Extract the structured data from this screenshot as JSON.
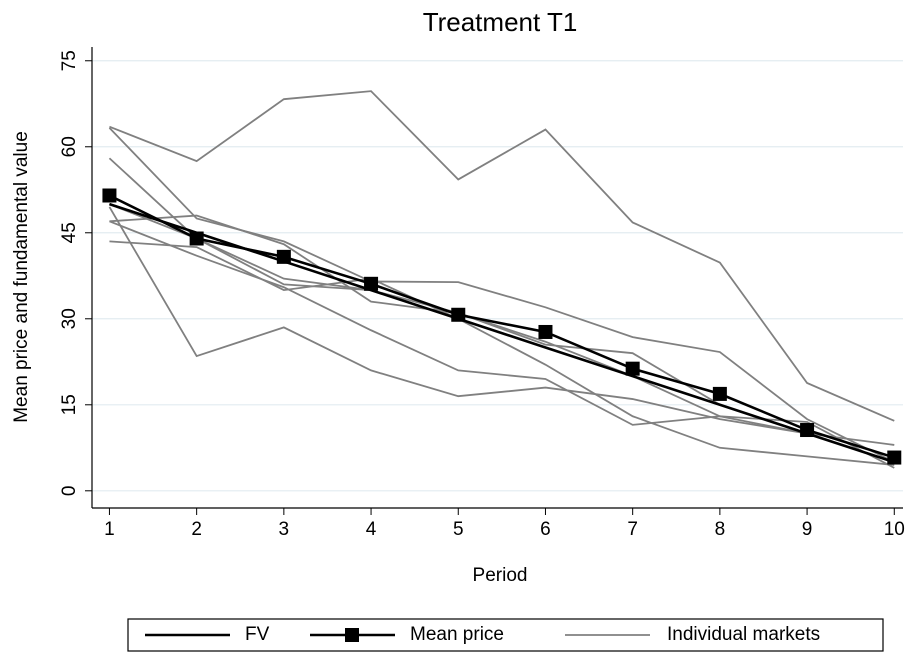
{
  "chart_data": {
    "type": "line",
    "title": "Treatment T1",
    "x_label": "Period",
    "y_label": "Mean price and fundamental value",
    "x": [
      1,
      2,
      3,
      4,
      5,
      6,
      7,
      8,
      9,
      10
    ],
    "xlim": [
      0.8,
      10.1
    ],
    "xticks": [
      1,
      2,
      3,
      4,
      5,
      6,
      7,
      8,
      9,
      10
    ],
    "ylim": [
      -3,
      77.4
    ],
    "yticks": [
      0,
      15,
      30,
      45,
      60,
      75
    ],
    "grid": true,
    "series": [
      {
        "name": "FV",
        "color": "#000000",
        "values": [
          50,
          45,
          40,
          35,
          30,
          25,
          20,
          15,
          10,
          5
        ]
      },
      {
        "name": "Mean price",
        "color": "#000000",
        "marker": "square",
        "values": [
          51.5,
          44,
          40.8,
          36.1,
          30.7,
          27.7,
          21.3,
          16.9,
          10.6,
          5.8
        ]
      },
      {
        "name": "Individual markets",
        "color": "#808080",
        "values": [
          [
            63.5,
            57.5,
            68.3,
            69.7,
            54.3,
            63,
            46.8,
            39.8,
            18.8,
            12.2
          ],
          [
            63.3,
            47.5,
            43.5,
            36.5,
            36.4,
            32,
            26.8,
            24.2,
            12.5,
            5
          ],
          [
            58,
            44,
            36,
            35,
            30,
            25,
            20,
            13,
            10,
            5
          ],
          [
            49.5,
            23.5,
            28.5,
            21,
            16.5,
            18,
            16,
            12.5,
            10,
            5
          ],
          [
            47,
            41,
            35.5,
            28,
            21,
            19.5,
            11.5,
            13,
            12,
            4
          ],
          [
            43.5,
            42.5,
            35,
            37,
            30,
            22,
            13,
            7.5,
            6,
            4.5
          ],
          [
            47,
            48,
            43,
            33,
            31,
            25.5,
            24,
            15,
            10,
            8
          ],
          [
            50,
            44,
            37,
            35,
            31,
            26,
            20,
            15,
            10,
            5
          ]
        ]
      }
    ],
    "legend": "bottom"
  }
}
